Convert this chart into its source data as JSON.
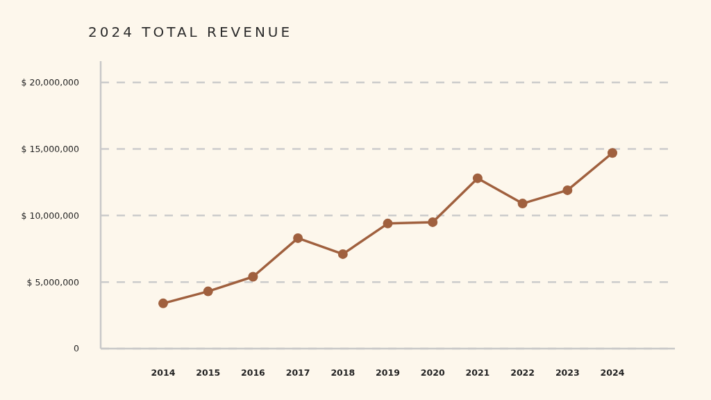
{
  "chart_data": {
    "type": "line",
    "title": "2024 TOTAL REVENUE",
    "categories": [
      "2014",
      "2015",
      "2016",
      "2017",
      "2018",
      "2019",
      "2020",
      "2021",
      "2022",
      "2023",
      "2024"
    ],
    "series": [
      {
        "color": "#a0603e",
        "values": [
          3400000,
          4300000,
          5400000,
          8300000,
          7100000,
          9400000,
          9500000,
          12800000,
          10900000,
          11900000,
          14700000
        ]
      }
    ],
    "ylim": [
      0,
      21600000
    ],
    "yticks": [
      0,
      {
        "value": 5000000,
        "label": "$ 5,000,000"
      },
      {
        "value": 10000000,
        "label": "$ 10,000,000"
      },
      {
        "value": 15000000,
        "label": "$ 15,000,000"
      },
      {
        "value": 20000000,
        "label": "$ 20,000,000"
      }
    ],
    "grid": "y",
    "marker": "circle",
    "line_style": "solid"
  }
}
